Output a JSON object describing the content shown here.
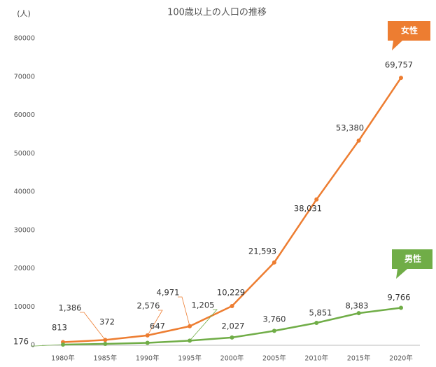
{
  "chart_data": {
    "type": "line",
    "title": "100歳以上の人口の推移",
    "y_label": "(人)",
    "categories": [
      "1980年",
      "1985年",
      "1990年",
      "1995年",
      "2000年",
      "2005年",
      "2010年",
      "2015年",
      "2020年"
    ],
    "series": [
      {
        "name": "女性",
        "color": "#ed7d31",
        "values": [
          813,
          1386,
          2576,
          4971,
          10229,
          21593,
          38031,
          53380,
          69757
        ],
        "value_labels": [
          "813",
          "1,386",
          "2,576",
          "4,971",
          "10,229",
          "21,593",
          "38,031",
          "53,380",
          "69,757"
        ]
      },
      {
        "name": "男性",
        "color": "#70ad47",
        "values": [
          176,
          372,
          647,
          1205,
          2027,
          3760,
          5851,
          8383,
          9766
        ],
        "value_labels": [
          "176",
          "372",
          "647",
          "1,205",
          "2,027",
          "3,760",
          "5,851",
          "8,383",
          "9,766"
        ]
      }
    ],
    "ylim": [
      0,
      80000
    ],
    "yticks": [
      0,
      10000,
      20000,
      30000,
      40000,
      50000,
      60000,
      70000,
      80000
    ],
    "grid": false
  }
}
